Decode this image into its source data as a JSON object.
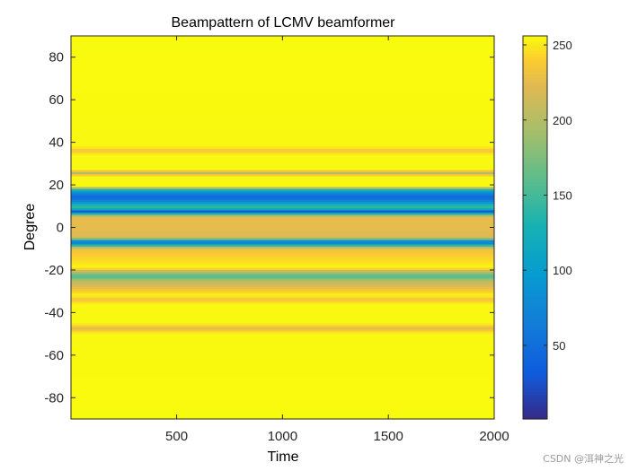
{
  "chart_data": {
    "type": "heatmap",
    "title": "Beampattern of LCMV beamformer",
    "xlabel": "Time",
    "ylabel": "Degree",
    "xlim": [
      1,
      2000
    ],
    "ylim": [
      -90,
      90
    ],
    "xticks": [
      500,
      1000,
      1500,
      2000
    ],
    "yticks": [
      -80,
      -60,
      -40,
      -20,
      0,
      20,
      40,
      60,
      80
    ],
    "colormap": "parula",
    "clim": [
      1,
      256
    ],
    "colorbar_ticks": [
      50,
      100,
      150,
      200,
      250
    ],
    "grid": false,
    "note_pattern_constant_over_time": true,
    "profile": {
      "degree": [
        -90,
        -50,
        -47.5,
        -45,
        -36,
        -34,
        -32,
        -25,
        -23,
        -21,
        -19,
        -10,
        -8,
        -7,
        -6,
        -5,
        0,
        5,
        6.5,
        7.5,
        8.5,
        10,
        12,
        14,
        16,
        18,
        19,
        24,
        25.5,
        27,
        34,
        36,
        38,
        90
      ],
      "value": [
        256,
        255,
        226,
        255,
        255,
        230,
        255,
        200,
        150,
        200,
        255,
        230,
        110,
        40,
        120,
        220,
        226,
        226,
        120,
        30,
        120,
        150,
        80,
        40,
        70,
        150,
        255,
        255,
        200,
        255,
        255,
        232,
        255,
        256
      ]
    }
  },
  "watermark": "CSDN @洱神之光"
}
